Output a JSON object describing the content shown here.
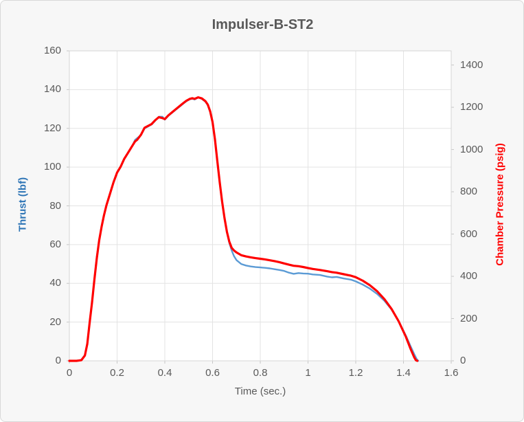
{
  "chart_data": {
    "type": "line",
    "title": "Impulser-B-ST2",
    "grid": true,
    "legend": "none",
    "style": {
      "page_bg": "#f7f7f7",
      "plot_bg": "#ffffff",
      "grid_color": "#e3e3e3",
      "border_color": "#d6d6d6",
      "tick_mark_color": "#c6c6c6",
      "text_color": "#595959",
      "title_color": "#595959"
    },
    "x_axis": {
      "title": "Time (sec.)",
      "range": [
        0,
        1.6
      ],
      "tick_values": [
        0,
        0.2,
        0.4,
        0.6,
        0.8,
        1.0,
        1.2,
        1.4,
        1.6
      ],
      "tick_labels": [
        "0",
        "0.2",
        "0.4",
        "0.6",
        "0.8",
        "1",
        "1.2",
        "1.4",
        "1.6"
      ]
    },
    "left_axis": {
      "title": "Thrust (lbf)",
      "color": "#2e75b6",
      "range": [
        0,
        160
      ],
      "tick_values": [
        0,
        20,
        40,
        60,
        80,
        100,
        120,
        140,
        160
      ],
      "tick_labels": [
        "0",
        "20",
        "40",
        "60",
        "80",
        "100",
        "120",
        "140",
        "160"
      ]
    },
    "right_axis": {
      "title": "Chamber Pressure (psig)",
      "color": "#ff0000",
      "range": [
        0,
        1467
      ],
      "tick_values": [
        0,
        200,
        400,
        600,
        800,
        1000,
        1200,
        1400
      ],
      "tick_labels": [
        "0",
        "200",
        "400",
        "600",
        "800",
        "1000",
        "1200",
        "1400"
      ]
    },
    "series": [
      {
        "name": "Thrust",
        "key": "thrust",
        "axis": "left",
        "color": "#5b9bd5",
        "width": 2.4,
        "points": [
          [
            0,
            0
          ],
          [
            0.03,
            0
          ],
          [
            0.05,
            0.5
          ],
          [
            0.065,
            3
          ],
          [
            0.075,
            9
          ],
          [
            0.085,
            20
          ],
          [
            0.095,
            30
          ],
          [
            0.105,
            42
          ],
          [
            0.115,
            54
          ],
          [
            0.125,
            62
          ],
          [
            0.135,
            69
          ],
          [
            0.145,
            75
          ],
          [
            0.155,
            80
          ],
          [
            0.17,
            86
          ],
          [
            0.185,
            92
          ],
          [
            0.2,
            97
          ],
          [
            0.215,
            100
          ],
          [
            0.23,
            104
          ],
          [
            0.245,
            107
          ],
          [
            0.26,
            110
          ],
          [
            0.275,
            114
          ],
          [
            0.285,
            115
          ],
          [
            0.3,
            116.5
          ],
          [
            0.315,
            120
          ],
          [
            0.33,
            121
          ],
          [
            0.345,
            122
          ],
          [
            0.36,
            124
          ],
          [
            0.375,
            126
          ],
          [
            0.39,
            126
          ],
          [
            0.4,
            124.5
          ],
          [
            0.415,
            126.5
          ],
          [
            0.43,
            128
          ],
          [
            0.445,
            129.5
          ],
          [
            0.46,
            131
          ],
          [
            0.475,
            132.5
          ],
          [
            0.49,
            134
          ],
          [
            0.505,
            135
          ],
          [
            0.515,
            135.3
          ],
          [
            0.525,
            134.9
          ],
          [
            0.54,
            136
          ],
          [
            0.555,
            135.2
          ],
          [
            0.57,
            133.8
          ],
          [
            0.58,
            132
          ],
          [
            0.59,
            128.5
          ],
          [
            0.6,
            123
          ],
          [
            0.61,
            114
          ],
          [
            0.62,
            103
          ],
          [
            0.63,
            92
          ],
          [
            0.64,
            82
          ],
          [
            0.65,
            73.5
          ],
          [
            0.66,
            66.5
          ],
          [
            0.67,
            61
          ],
          [
            0.68,
            57
          ],
          [
            0.69,
            54
          ],
          [
            0.7,
            52
          ],
          [
            0.72,
            50
          ],
          [
            0.74,
            49.2
          ],
          [
            0.76,
            48.7
          ],
          [
            0.78,
            48.4
          ],
          [
            0.8,
            48.2
          ],
          [
            0.82,
            48
          ],
          [
            0.84,
            47.7
          ],
          [
            0.86,
            47.3
          ],
          [
            0.88,
            46.9
          ],
          [
            0.9,
            46.4
          ],
          [
            0.92,
            45.5
          ],
          [
            0.94,
            44.9
          ],
          [
            0.96,
            45.3
          ],
          [
            0.98,
            45.1
          ],
          [
            1,
            45
          ],
          [
            1.02,
            44.6
          ],
          [
            1.05,
            44.3
          ],
          [
            1.08,
            43.5
          ],
          [
            1.1,
            43.1
          ],
          [
            1.12,
            43.3
          ],
          [
            1.15,
            42.5
          ],
          [
            1.18,
            41.9
          ],
          [
            1.2,
            41
          ],
          [
            1.23,
            39.3
          ],
          [
            1.26,
            37.2
          ],
          [
            1.29,
            34.5
          ],
          [
            1.32,
            31
          ],
          [
            1.35,
            26.5
          ],
          [
            1.38,
            20.5
          ],
          [
            1.41,
            13
          ],
          [
            1.43,
            7.5
          ],
          [
            1.445,
            3.5
          ],
          [
            1.455,
            1
          ],
          [
            1.462,
            0
          ]
        ]
      },
      {
        "name": "Chamber Pressure",
        "key": "chamber-pressure",
        "axis": "right",
        "color": "#ff0000",
        "width": 3.2,
        "points": [
          [
            0,
            0
          ],
          [
            0.03,
            0
          ],
          [
            0.05,
            3
          ],
          [
            0.065,
            25
          ],
          [
            0.075,
            80
          ],
          [
            0.085,
            180
          ],
          [
            0.095,
            276
          ],
          [
            0.105,
            386
          ],
          [
            0.115,
            487
          ],
          [
            0.125,
            570
          ],
          [
            0.135,
            634
          ],
          [
            0.145,
            689
          ],
          [
            0.155,
            735
          ],
          [
            0.17,
            790
          ],
          [
            0.185,
            845
          ],
          [
            0.2,
            891
          ],
          [
            0.215,
            919
          ],
          [
            0.23,
            956
          ],
          [
            0.245,
            983
          ],
          [
            0.26,
            1011
          ],
          [
            0.275,
            1038
          ],
          [
            0.285,
            1047
          ],
          [
            0.3,
            1070
          ],
          [
            0.315,
            1103
          ],
          [
            0.33,
            1112
          ],
          [
            0.345,
            1121
          ],
          [
            0.36,
            1139
          ],
          [
            0.375,
            1153
          ],
          [
            0.39,
            1149
          ],
          [
            0.4,
            1144
          ],
          [
            0.415,
            1162
          ],
          [
            0.43,
            1176
          ],
          [
            0.445,
            1190
          ],
          [
            0.46,
            1204
          ],
          [
            0.475,
            1218
          ],
          [
            0.49,
            1231
          ],
          [
            0.505,
            1240
          ],
          [
            0.515,
            1243
          ],
          [
            0.525,
            1240
          ],
          [
            0.54,
            1247
          ],
          [
            0.555,
            1242
          ],
          [
            0.57,
            1229
          ],
          [
            0.58,
            1213
          ],
          [
            0.59,
            1181
          ],
          [
            0.6,
            1130
          ],
          [
            0.61,
            1048
          ],
          [
            0.62,
            947
          ],
          [
            0.63,
            846
          ],
          [
            0.64,
            754
          ],
          [
            0.65,
            676
          ],
          [
            0.66,
            611
          ],
          [
            0.67,
            565
          ],
          [
            0.68,
            535
          ],
          [
            0.69,
            522
          ],
          [
            0.7,
            513
          ],
          [
            0.72,
            500
          ],
          [
            0.74,
            494
          ],
          [
            0.76,
            490
          ],
          [
            0.78,
            486
          ],
          [
            0.8,
            483
          ],
          [
            0.82,
            480
          ],
          [
            0.84,
            476
          ],
          [
            0.86,
            472
          ],
          [
            0.88,
            467
          ],
          [
            0.9,
            461
          ],
          [
            0.92,
            455
          ],
          [
            0.94,
            450
          ],
          [
            0.96,
            448
          ],
          [
            0.98,
            444
          ],
          [
            1,
            439
          ],
          [
            1.02,
            435
          ],
          [
            1.05,
            430
          ],
          [
            1.08,
            424
          ],
          [
            1.1,
            420
          ],
          [
            1.12,
            417
          ],
          [
            1.15,
            410
          ],
          [
            1.18,
            403
          ],
          [
            1.2,
            396
          ],
          [
            1.23,
            379
          ],
          [
            1.26,
            357
          ],
          [
            1.29,
            329
          ],
          [
            1.32,
            292
          ],
          [
            1.35,
            246
          ],
          [
            1.38,
            187
          ],
          [
            1.41,
            114
          ],
          [
            1.43,
            56
          ],
          [
            1.445,
            17
          ],
          [
            1.452,
            3
          ],
          [
            1.458,
            0
          ]
        ]
      }
    ]
  }
}
